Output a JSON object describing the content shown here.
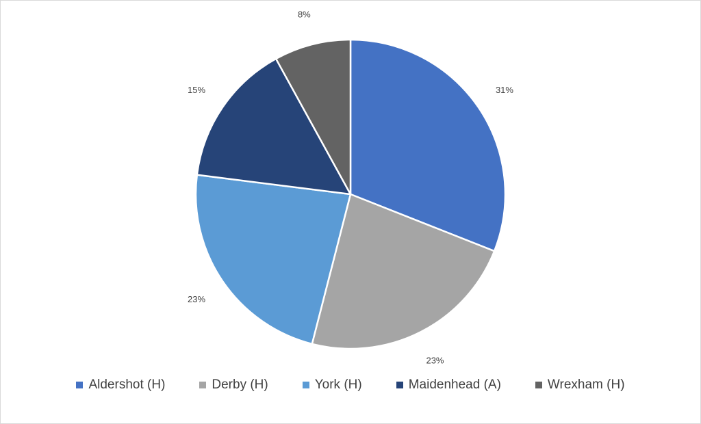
{
  "chart_data": {
    "type": "pie",
    "title": "",
    "start_angle_deg": 0,
    "direction": "clockwise",
    "legend_position": "bottom",
    "series": [
      {
        "name": "Aldershot (H)",
        "value": 31,
        "label": "31%",
        "color": "#4472C4"
      },
      {
        "name": "Derby (H)",
        "value": 23,
        "label": "23%",
        "color": "#A5A5A5"
      },
      {
        "name": "York (H)",
        "value": 23,
        "label": "23%",
        "color": "#5B9BD5"
      },
      {
        "name": "Maidenhead (A)",
        "value": 15,
        "label": "15%",
        "color": "#264478"
      },
      {
        "name": "Wrexham (H)",
        "value": 8,
        "label": "8%",
        "color": "#636363"
      }
    ]
  }
}
